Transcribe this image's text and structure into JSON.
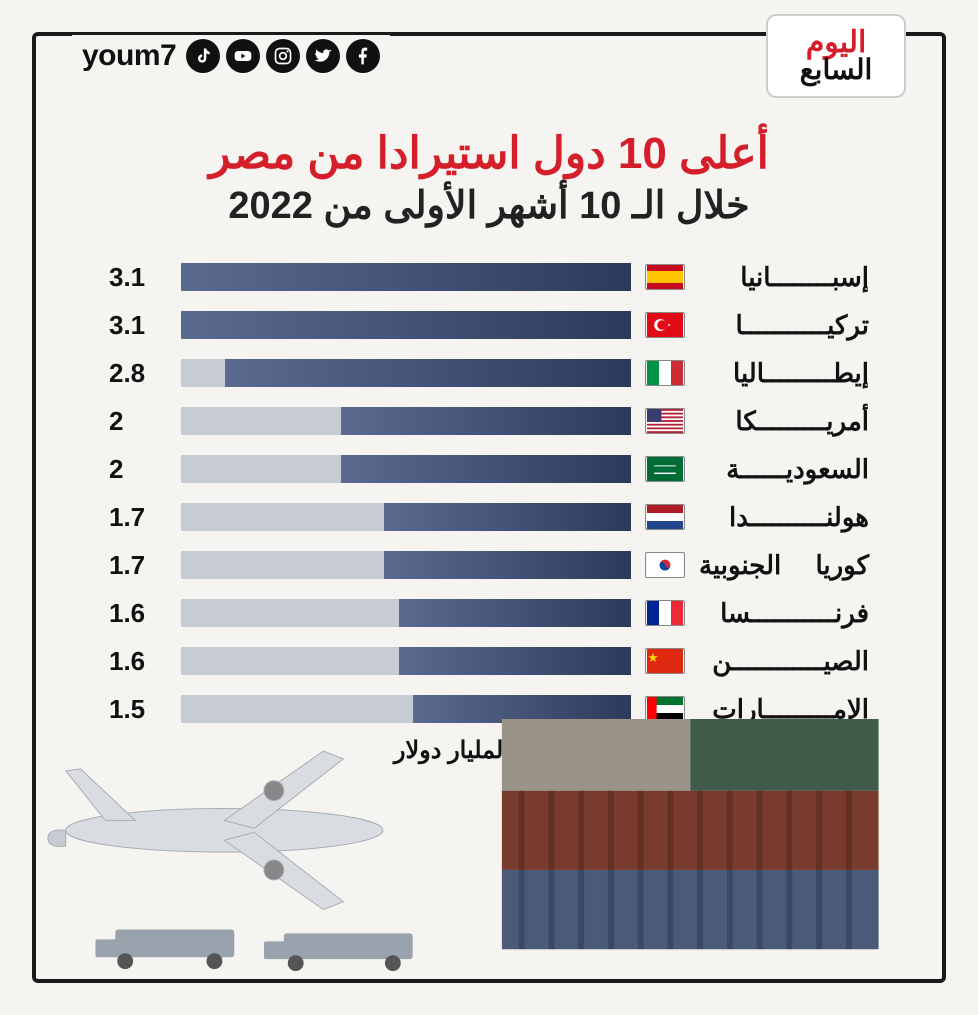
{
  "brand": {
    "logo_line1": "اليوم",
    "logo_line2": "السابع",
    "handle": "youm7"
  },
  "title": {
    "main": "أعلى 10 دول استيرادا من مصر",
    "sub": "خلال الـ 10 أشهر الأولى من 2022"
  },
  "chart": {
    "type": "bar",
    "orientation": "horizontal",
    "direction": "rtl",
    "unit_label": "القيمة بالمليار دولار",
    "max_value": 3.1,
    "track_color": "#c6cbd4",
    "bar_gradient_from": "#2d3a5c",
    "bar_gradient_to": "#5a6b8f",
    "value_fontsize": 26,
    "label_fontsize": 26,
    "label_color": "#111111",
    "background": "#f5f4f0",
    "rows": [
      {
        "country": "إسبــــــــانيا",
        "value": 3.1,
        "flag": "es"
      },
      {
        "country": "تركيـــــــــــا",
        "value": 3.1,
        "flag": "tr"
      },
      {
        "country": "إيطـــــــــاليا",
        "value": 2.8,
        "flag": "it"
      },
      {
        "country": "أمريـــــــــكا",
        "value": 2.0,
        "flag": "us"
      },
      {
        "country": "السعوديــــــة",
        "value": 2.0,
        "flag": "sa"
      },
      {
        "country": "هولنــــــــــدا",
        "value": 1.7,
        "flag": "nl"
      },
      {
        "country": "كوريا الجنوبية",
        "value": 1.7,
        "flag": "kr"
      },
      {
        "country": "فرنـــــــــــسا",
        "value": 1.6,
        "flag": "fr"
      },
      {
        "country": "الصيــــــــــــن",
        "value": 1.6,
        "flag": "cn"
      },
      {
        "country": "الإمـــــــــارات",
        "value": 1.5,
        "flag": "ae"
      }
    ]
  },
  "colors": {
    "frame_border": "#1a1a1a",
    "page_bg": "#f5f4f0",
    "title_red": "#d41f2a",
    "title_black": "#222222"
  }
}
